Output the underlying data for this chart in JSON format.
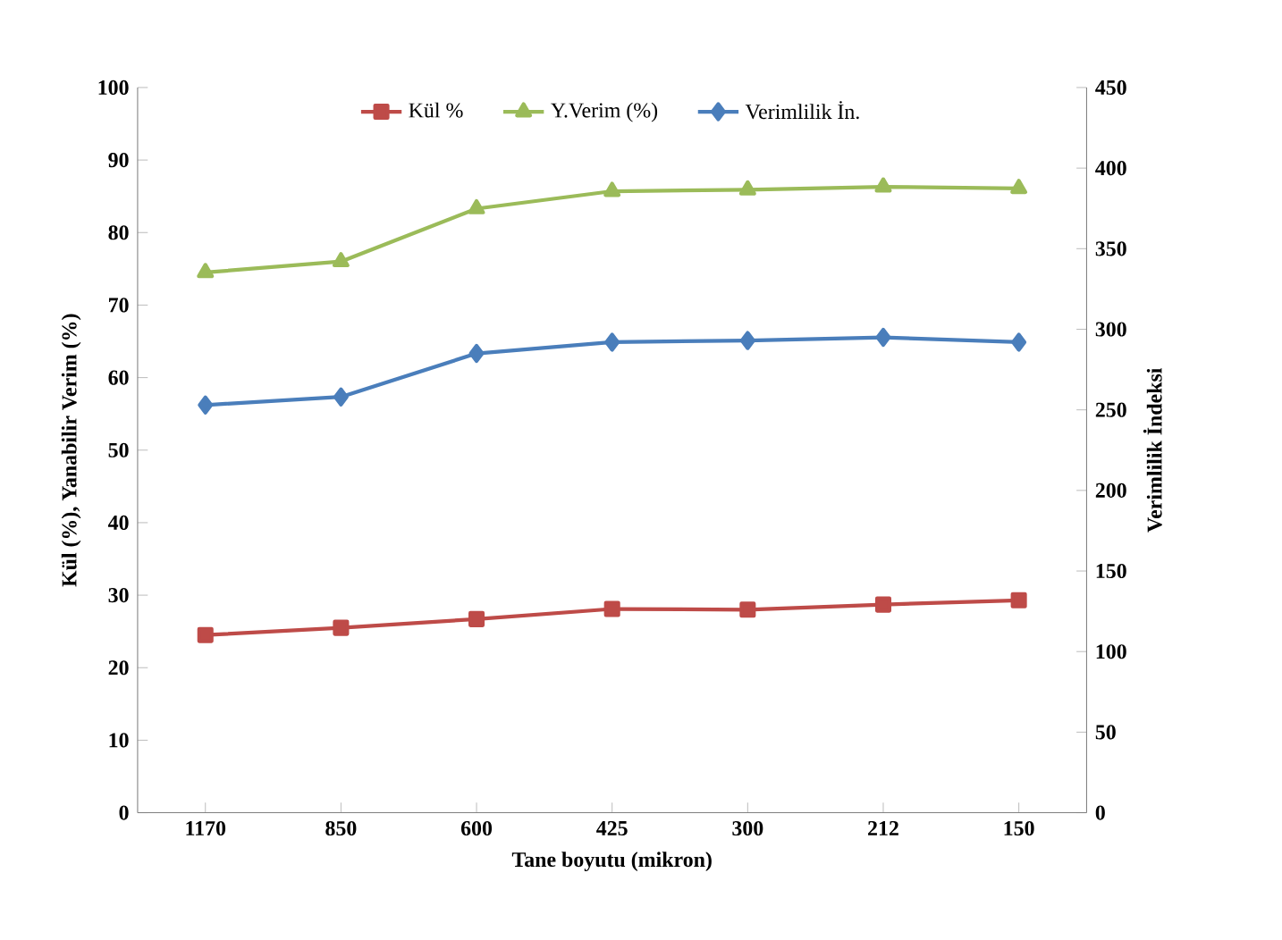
{
  "chart_data": {
    "type": "line",
    "xlabel": "Tane boyutu (mikron)",
    "ylabel": "Kül (%), Yanabilir Verim (%)",
    "y2label": "Verimlilik İndeksi",
    "categories": [
      "1170",
      "850",
      "600",
      "425",
      "300",
      "212",
      "150"
    ],
    "series": [
      {
        "name": "Kül %",
        "color": "#be4b48",
        "marker": "square",
        "values": [
          24.5,
          25.5,
          26.7,
          28.1,
          28.0,
          28.7,
          29.3
        ]
      },
      {
        "name": "Y.Verim (%)",
        "color": "#9bbb59",
        "marker": "triangle",
        "values": [
          74.5,
          76.0,
          83.3,
          85.7,
          85.9,
          86.3,
          86.1
        ]
      },
      {
        "name": "Verimlilik İn.",
        "color": "#4a7ebb",
        "marker": "diamond",
        "axis": "y2",
        "values": [
          253,
          258,
          285,
          292,
          293,
          295,
          292
        ]
      }
    ],
    "ylim": [
      0,
      100
    ],
    "yticks": [
      0,
      10,
      20,
      30,
      40,
      50,
      60,
      70,
      80,
      90,
      100
    ],
    "y2lim": [
      0,
      450
    ],
    "y2ticks": [
      0,
      50,
      100,
      150,
      200,
      250,
      300,
      350,
      400,
      450
    ],
    "legend": "top",
    "grid": false
  }
}
